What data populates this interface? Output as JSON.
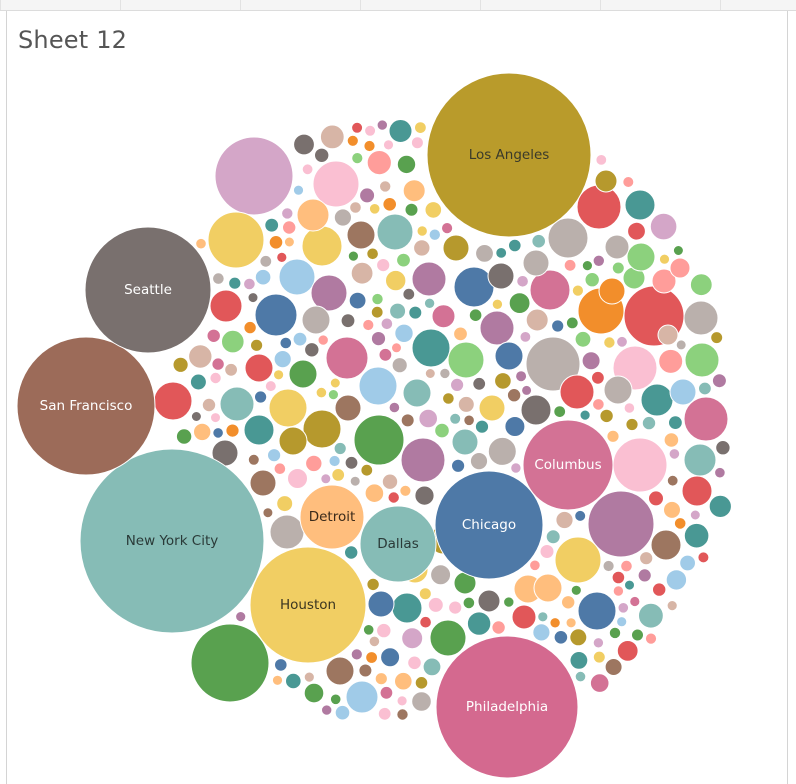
{
  "sheet": {
    "title": "Sheet 12"
  },
  "chart_data": {
    "type": "packed-bubble",
    "title": "Sheet 12",
    "labeled_bubbles": [
      {
        "label": "Los Angeles",
        "color": "#b99b2b",
        "text_color": "#3a3a2a"
      },
      {
        "label": "New York City",
        "color": "#86bcb6",
        "text_color": "#2a3a38"
      },
      {
        "label": "Philadelphia",
        "color": "#d4698f",
        "text_color": "#ffffff"
      },
      {
        "label": "San Francisco",
        "color": "#9c6b59",
        "text_color": "#ffffff"
      },
      {
        "label": "Seattle",
        "color": "#79706e",
        "text_color": "#ffffff"
      },
      {
        "label": "Houston",
        "color": "#f1ce63",
        "text_color": "#3a3520"
      },
      {
        "label": "Chicago",
        "color": "#4e79a7",
        "text_color": "#ffffff"
      },
      {
        "label": "Columbus",
        "color": "#d37295",
        "text_color": "#ffffff"
      },
      {
        "label": "Dallas",
        "color": "#86bcb6",
        "text_color": "#2a3a38"
      },
      {
        "label": "Detroit",
        "color": "#ffbe7d",
        "text_color": "#3a2a1a"
      }
    ],
    "palette": [
      "#4e79a7",
      "#a0cbe8",
      "#f28e2b",
      "#ffbe7d",
      "#59a14f",
      "#8cd17d",
      "#b6992d",
      "#f1ce63",
      "#499894",
      "#86bcb6",
      "#e15759",
      "#ff9d9a",
      "#79706e",
      "#bab0ac",
      "#d37295",
      "#fabfd2",
      "#b07aa1",
      "#d4a6c8",
      "#9d7660",
      "#d7b5a6"
    ]
  }
}
